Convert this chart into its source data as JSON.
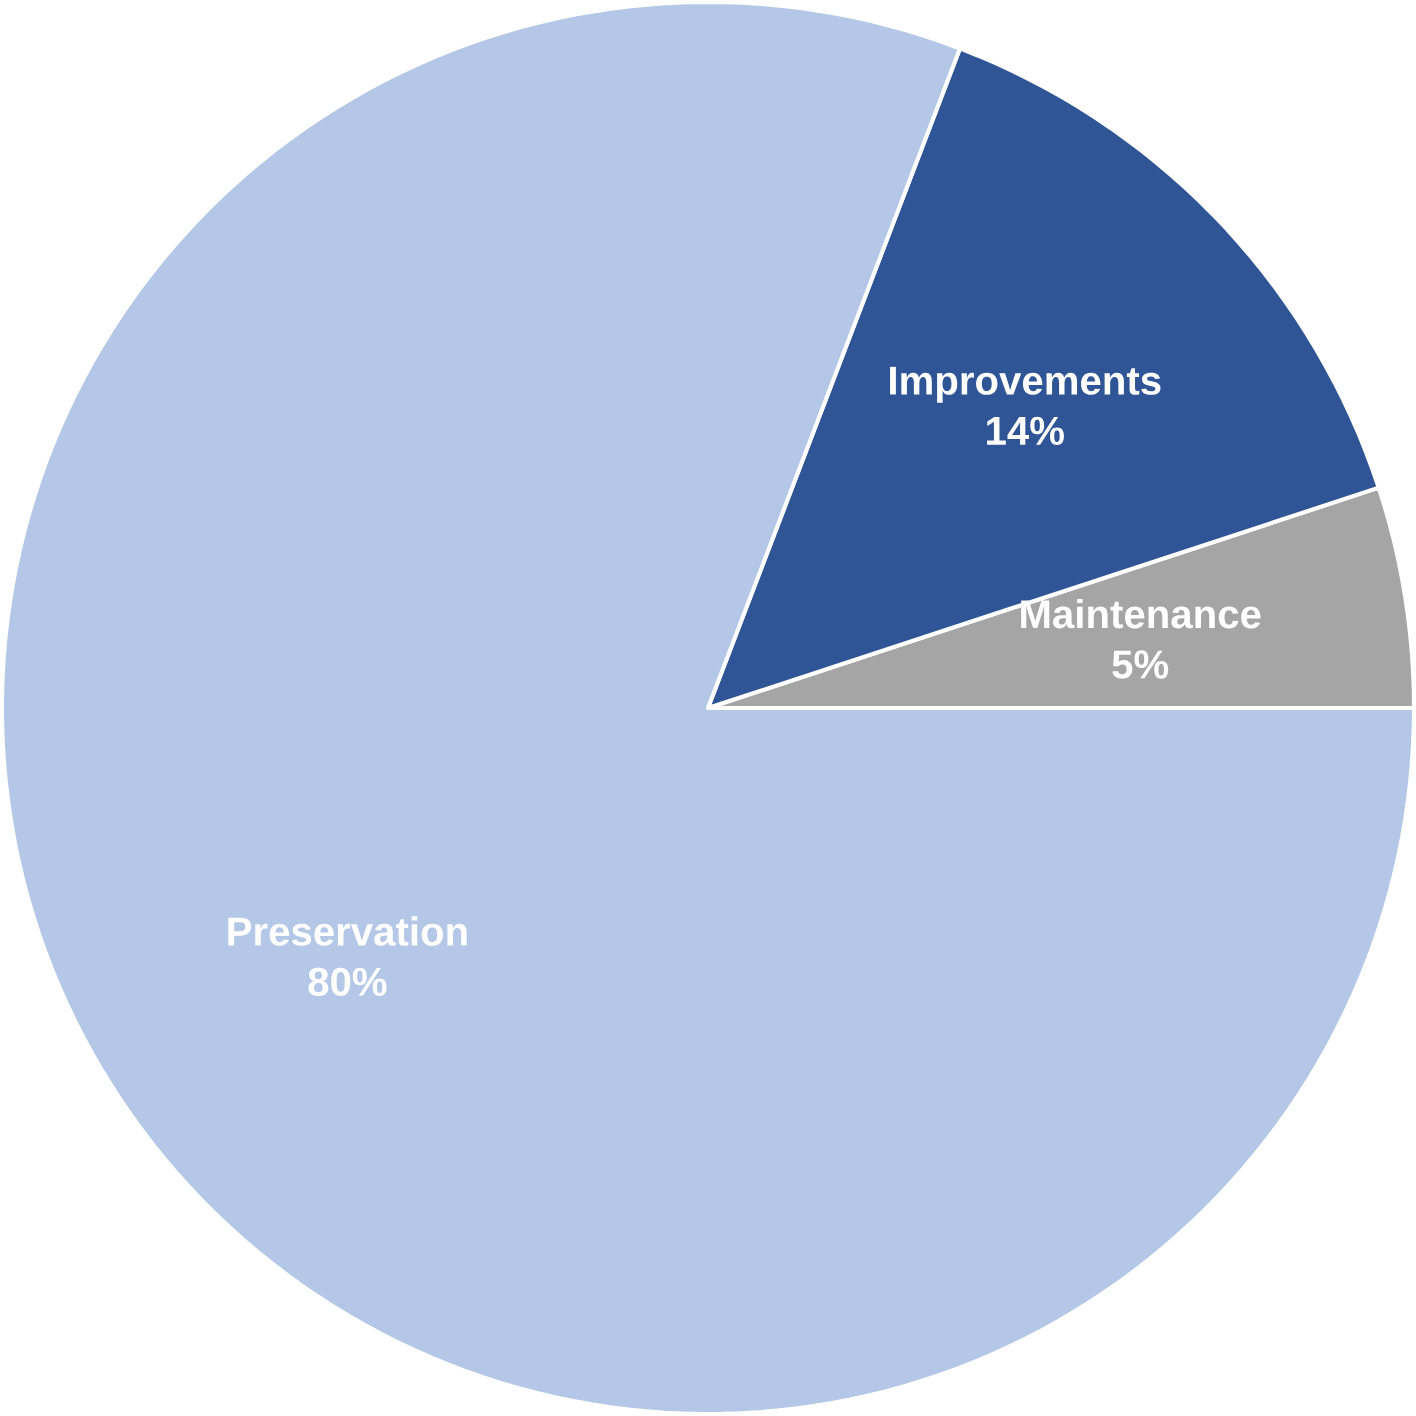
{
  "chart_data": {
    "type": "pie",
    "categories": [
      "Maintenance",
      "Improvements",
      "Preservation"
    ],
    "values": [
      5,
      14,
      80
    ],
    "value_labels": [
      "5%",
      "14%",
      "80%"
    ],
    "colors": [
      "#a5a5a5",
      "#2f5597",
      "#b4c7e7"
    ]
  }
}
